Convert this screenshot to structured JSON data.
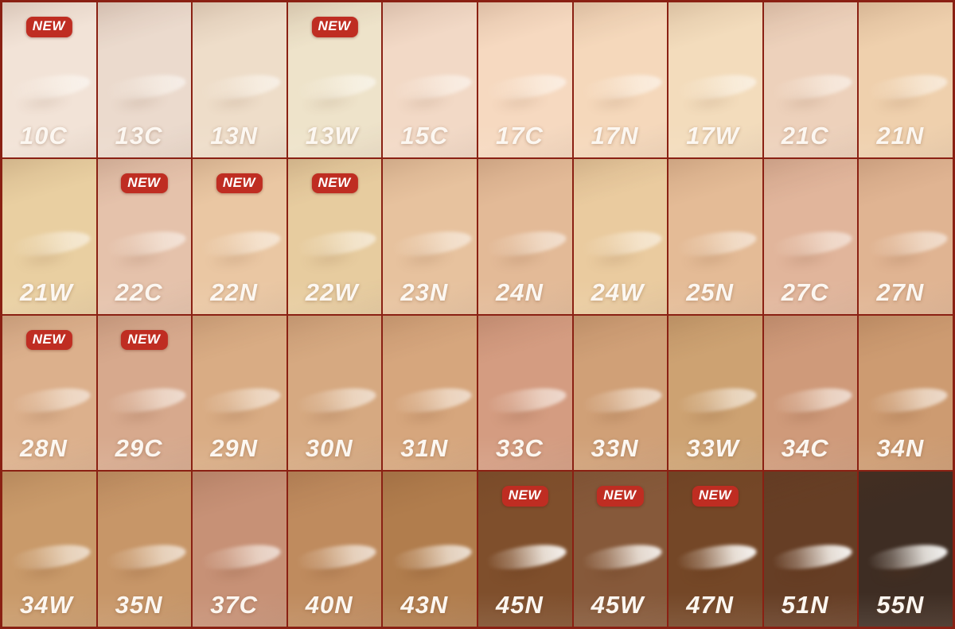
{
  "badge": {
    "label": "NEW",
    "background": "#bf2d22",
    "text_color": "#ffffff"
  },
  "grid": {
    "line_color": "#8a2013",
    "rows": 4,
    "cols": 10
  },
  "chart_data": {
    "type": "table",
    "title": "",
    "rows": 4,
    "cols": 10,
    "cells": [
      {
        "label": "10C",
        "new": true,
        "color": "#f2e3d7"
      },
      {
        "label": "13C",
        "new": false,
        "color": "#ebdacd"
      },
      {
        "label": "13N",
        "new": false,
        "color": "#eeddc9"
      },
      {
        "label": "13W",
        "new": true,
        "color": "#eee3ca"
      },
      {
        "label": "15C",
        "new": false,
        "color": "#f2d9c6"
      },
      {
        "label": "17C",
        "new": false,
        "color": "#f6d9c0"
      },
      {
        "label": "17N",
        "new": false,
        "color": "#f5d8bb"
      },
      {
        "label": "17W",
        "new": false,
        "color": "#f3dcbc"
      },
      {
        "label": "21C",
        "new": false,
        "color": "#edd1bb"
      },
      {
        "label": "21N",
        "new": false,
        "color": "#efd0ad"
      },
      {
        "label": "21W",
        "new": false,
        "color": "#e9cfa1"
      },
      {
        "label": "22C",
        "new": true,
        "color": "#e5c2ab"
      },
      {
        "label": "22N",
        "new": true,
        "color": "#eac7a3"
      },
      {
        "label": "22W",
        "new": true,
        "color": "#e7cc9f"
      },
      {
        "label": "23N",
        "new": false,
        "color": "#e7c29e"
      },
      {
        "label": "24N",
        "new": false,
        "color": "#e3ba97"
      },
      {
        "label": "24W",
        "new": false,
        "color": "#eacb9f"
      },
      {
        "label": "25N",
        "new": false,
        "color": "#e4bb96"
      },
      {
        "label": "27C",
        "new": false,
        "color": "#e1b59b"
      },
      {
        "label": "27N",
        "new": false,
        "color": "#e0b492"
      },
      {
        "label": "28N",
        "new": true,
        "color": "#dcb08c"
      },
      {
        "label": "29C",
        "new": true,
        "color": "#d7a98d"
      },
      {
        "label": "29N",
        "new": false,
        "color": "#d9ac84"
      },
      {
        "label": "30N",
        "new": false,
        "color": "#d6a981"
      },
      {
        "label": "31N",
        "new": false,
        "color": "#d6a67d"
      },
      {
        "label": "33C",
        "new": false,
        "color": "#d49c81"
      },
      {
        "label": "33N",
        "new": false,
        "color": "#d0a077"
      },
      {
        "label": "33W",
        "new": false,
        "color": "#cda272"
      },
      {
        "label": "34C",
        "new": false,
        "color": "#cf9a7a"
      },
      {
        "label": "34N",
        "new": false,
        "color": "#cd9b71"
      },
      {
        "label": "34W",
        "new": false,
        "color": "#c99a6a"
      },
      {
        "label": "35N",
        "new": false,
        "color": "#c79668"
      },
      {
        "label": "37C",
        "new": false,
        "color": "#c79176"
      },
      {
        "label": "40N",
        "new": false,
        "color": "#bf8b5e"
      },
      {
        "label": "43N",
        "new": false,
        "color": "#b17d4d"
      },
      {
        "label": "45N",
        "new": true,
        "color": "#7f4f2c"
      },
      {
        "label": "45W",
        "new": true,
        "color": "#86593a"
      },
      {
        "label": "47N",
        "new": true,
        "color": "#744727"
      },
      {
        "label": "51N",
        "new": false,
        "color": "#663e25"
      },
      {
        "label": "55N",
        "new": false,
        "color": "#3e2d23"
      }
    ]
  }
}
